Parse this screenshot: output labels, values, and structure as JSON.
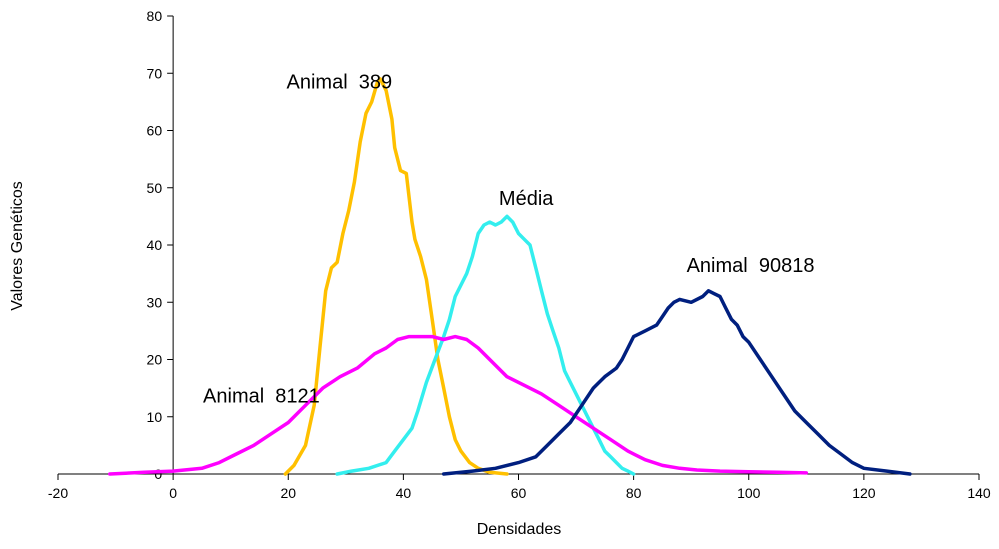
{
  "chart_data": {
    "type": "line",
    "title": "",
    "xlabel": "Densidades",
    "ylabel": "Valores Genéticos",
    "xlim": [
      -20,
      140
    ],
    "ylim": [
      0,
      80
    ],
    "x_ticks": [
      -20,
      0,
      20,
      40,
      60,
      80,
      100,
      120,
      140
    ],
    "y_ticks": [
      0,
      10,
      20,
      30,
      40,
      50,
      60,
      70,
      80
    ],
    "grid": false,
    "legend": "none",
    "series": [
      {
        "name": "Animal 389",
        "color": "#FFC000",
        "points": [
          [
            19.5,
            0
          ],
          [
            21,
            1.5
          ],
          [
            23,
            5
          ],
          [
            24.5,
            12
          ],
          [
            25.5,
            22
          ],
          [
            26.5,
            32
          ],
          [
            27.5,
            36
          ],
          [
            28.5,
            37
          ],
          [
            29.5,
            42
          ],
          [
            30.5,
            46
          ],
          [
            31.5,
            51
          ],
          [
            32.5,
            58
          ],
          [
            33.5,
            63
          ],
          [
            34.5,
            65
          ],
          [
            35.5,
            68.5
          ],
          [
            36,
            69
          ],
          [
            37,
            67
          ],
          [
            38,
            62
          ],
          [
            38.5,
            57
          ],
          [
            39.5,
            53
          ],
          [
            40.5,
            52.5
          ],
          [
            41.5,
            44
          ],
          [
            42,
            41
          ],
          [
            43,
            38
          ],
          [
            44,
            34
          ],
          [
            45,
            27
          ],
          [
            46,
            20
          ],
          [
            47,
            15
          ],
          [
            48,
            10
          ],
          [
            49,
            6
          ],
          [
            50,
            4
          ],
          [
            51.5,
            2
          ],
          [
            53,
            1
          ],
          [
            55,
            0.3
          ],
          [
            58,
            0
          ]
        ]
      },
      {
        "name": "Média",
        "color": "#33EEEE",
        "points": [
          [
            28.5,
            0
          ],
          [
            31,
            0.5
          ],
          [
            34,
            1
          ],
          [
            37,
            2
          ],
          [
            38.5,
            4
          ],
          [
            40,
            6
          ],
          [
            41.5,
            8
          ],
          [
            42.5,
            11
          ],
          [
            44,
            16
          ],
          [
            45.5,
            20
          ],
          [
            47,
            24
          ],
          [
            48,
            27
          ],
          [
            49,
            31
          ],
          [
            50,
            33
          ],
          [
            51,
            35
          ],
          [
            52,
            38
          ],
          [
            53,
            42
          ],
          [
            54,
            43.5
          ],
          [
            55,
            44
          ],
          [
            56,
            43.5
          ],
          [
            57,
            44
          ],
          [
            58,
            45
          ],
          [
            59,
            44
          ],
          [
            60,
            42
          ],
          [
            61,
            41
          ],
          [
            62,
            40
          ],
          [
            63,
            36
          ],
          [
            64,
            32
          ],
          [
            65,
            28
          ],
          [
            66,
            25
          ],
          [
            67,
            22
          ],
          [
            68,
            18
          ],
          [
            69,
            16
          ],
          [
            70,
            14
          ],
          [
            71,
            12
          ],
          [
            72,
            10
          ],
          [
            73,
            8
          ],
          [
            74,
            6
          ],
          [
            75,
            4
          ],
          [
            76,
            3
          ],
          [
            77,
            2
          ],
          [
            78,
            1
          ],
          [
            79,
            0.5
          ],
          [
            80,
            0
          ]
        ]
      },
      {
        "name": "Animal 8121",
        "color": "#FF00FF",
        "points": [
          [
            -11,
            0
          ],
          [
            -5,
            0.3
          ],
          [
            0,
            0.5
          ],
          [
            5,
            1
          ],
          [
            8,
            2
          ],
          [
            11,
            3.5
          ],
          [
            14,
            5
          ],
          [
            17,
            7
          ],
          [
            20,
            9
          ],
          [
            23,
            12
          ],
          [
            26,
            15
          ],
          [
            29,
            17
          ],
          [
            32,
            18.5
          ],
          [
            35,
            21
          ],
          [
            37,
            22
          ],
          [
            39,
            23.5
          ],
          [
            41,
            24
          ],
          [
            43,
            24
          ],
          [
            45,
            24
          ],
          [
            47,
            23.5
          ],
          [
            49,
            24
          ],
          [
            51,
            23.5
          ],
          [
            53,
            22
          ],
          [
            55,
            20
          ],
          [
            58,
            17
          ],
          [
            61,
            15.5
          ],
          [
            64,
            14
          ],
          [
            67,
            12
          ],
          [
            70,
            10
          ],
          [
            73,
            8
          ],
          [
            76,
            6
          ],
          [
            79,
            4
          ],
          [
            82,
            2.5
          ],
          [
            85,
            1.5
          ],
          [
            88,
            1
          ],
          [
            91,
            0.7
          ],
          [
            95,
            0.5
          ],
          [
            100,
            0.4
          ],
          [
            105,
            0.3
          ],
          [
            110,
            0.2
          ]
        ]
      },
      {
        "name": "Animal 90818",
        "color": "#001F7F",
        "points": [
          [
            47,
            0
          ],
          [
            52,
            0.5
          ],
          [
            56,
            1
          ],
          [
            60,
            2
          ],
          [
            63,
            3
          ],
          [
            65,
            5
          ],
          [
            67,
            7
          ],
          [
            69,
            9
          ],
          [
            71,
            12
          ],
          [
            73,
            15
          ],
          [
            75,
            17
          ],
          [
            77,
            18.5
          ],
          [
            78,
            20
          ],
          [
            79,
            22
          ],
          [
            80,
            24
          ],
          [
            82,
            25
          ],
          [
            84,
            26
          ],
          [
            85,
            27.5
          ],
          [
            86,
            29
          ],
          [
            87,
            30
          ],
          [
            88,
            30.5
          ],
          [
            90,
            30
          ],
          [
            92,
            31
          ],
          [
            93,
            32
          ],
          [
            94,
            31.5
          ],
          [
            95,
            31
          ],
          [
            96,
            29
          ],
          [
            97,
            27
          ],
          [
            98,
            26
          ],
          [
            99,
            24
          ],
          [
            100,
            23
          ],
          [
            102,
            20
          ],
          [
            104,
            17
          ],
          [
            106,
            14
          ],
          [
            108,
            11
          ],
          [
            110,
            9
          ],
          [
            112,
            7
          ],
          [
            114,
            5
          ],
          [
            116,
            3.5
          ],
          [
            118,
            2
          ],
          [
            120,
            1
          ],
          [
            124,
            0.5
          ],
          [
            128,
            0
          ]
        ]
      }
    ],
    "annotations": [
      {
        "text": "Animal  389",
        "x": 19.7,
        "y": 67.3
      },
      {
        "text": "Média",
        "x": 56.6,
        "y": 47.0
      },
      {
        "text": "Animal  90818",
        "x": 89.2,
        "y": 35.3
      },
      {
        "text": "Animal  8121",
        "x": 5.2,
        "y": 12.5
      }
    ]
  }
}
